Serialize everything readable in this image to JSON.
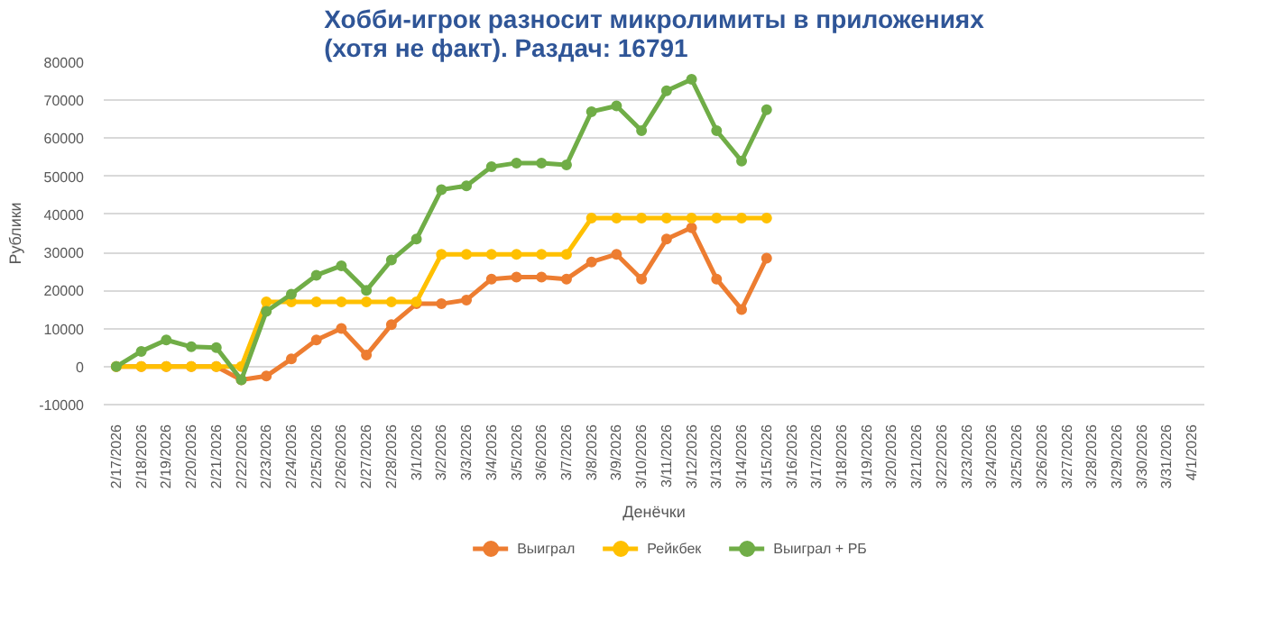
{
  "chart_data": {
    "type": "line",
    "title": "Хобби-игрок разносит микролимиты в приложениях\n(хотя не факт). Раздач: 16791",
    "xlabel": "Денёчки",
    "ylabel": "Рублики",
    "categories": [
      "2/17/2026",
      "2/18/2026",
      "2/19/2026",
      "2/20/2026",
      "2/21/2026",
      "2/22/2026",
      "2/23/2026",
      "2/24/2026",
      "2/25/2026",
      "2/26/2026",
      "2/27/2026",
      "2/28/2026",
      "3/1/2026",
      "3/2/2026",
      "3/3/2026",
      "3/4/2026",
      "3/5/2026",
      "3/6/2026",
      "3/7/2026",
      "3/8/2026",
      "3/9/2026",
      "3/10/2026",
      "3/11/2026",
      "3/12/2026",
      "3/13/2026",
      "3/14/2026",
      "3/15/2026",
      "3/16/2026",
      "3/17/2026",
      "3/18/2026",
      "3/19/2026",
      "3/20/2026",
      "3/21/2026",
      "3/22/2026",
      "3/23/2026",
      "3/24/2026",
      "3/25/2026",
      "3/26/2026",
      "3/27/2026",
      "3/28/2026",
      "3/29/2026",
      "3/30/2026",
      "3/31/2026",
      "4/1/2026"
    ],
    "series": [
      {
        "name": "Выиграл",
        "color": "#ed7d31",
        "values": [
          0,
          0,
          0,
          0,
          0,
          -3500,
          -2500,
          2000,
          7000,
          10000,
          3000,
          11000,
          16500,
          16500,
          17500,
          23000,
          23500,
          23500,
          23000,
          27500,
          29500,
          23000,
          33500,
          36500,
          23000,
          15000,
          28500,
          null,
          null,
          null,
          null,
          null,
          null,
          null,
          null,
          null,
          null,
          null,
          null,
          null,
          null,
          null,
          null,
          null
        ]
      },
      {
        "name": "Рейкбек",
        "color": "#ffc000",
        "values": [
          0,
          0,
          0,
          0,
          0,
          0,
          17000,
          17000,
          17000,
          17000,
          17000,
          17000,
          17000,
          29500,
          29500,
          29500,
          29500,
          29500,
          29500,
          39000,
          39000,
          39000,
          39000,
          39000,
          39000,
          39000,
          39000,
          null,
          null,
          null,
          null,
          null,
          null,
          null,
          null,
          null,
          null,
          null,
          null,
          null,
          null,
          null,
          null,
          null
        ]
      },
      {
        "name": "Выиграл + РБ",
        "color": "#70ad47",
        "values": [
          0,
          4000,
          7000,
          5200,
          5000,
          -3500,
          14500,
          19000,
          24000,
          26500,
          20000,
          28000,
          33500,
          46500,
          47500,
          52500,
          53500,
          53500,
          53000,
          67000,
          68500,
          62000,
          72500,
          75500,
          62000,
          54000,
          67500,
          null,
          null,
          null,
          null,
          null,
          null,
          null,
          null,
          null,
          null,
          null,
          null,
          null,
          null,
          null,
          null,
          null
        ]
      }
    ],
    "ylim": [
      -10000,
      80000
    ],
    "yticks": [
      -10000,
      0,
      10000,
      20000,
      30000,
      40000,
      50000,
      60000,
      70000,
      80000
    ],
    "grid": "y",
    "legend": "bottom",
    "marker": "circle",
    "line_style": "solid"
  }
}
